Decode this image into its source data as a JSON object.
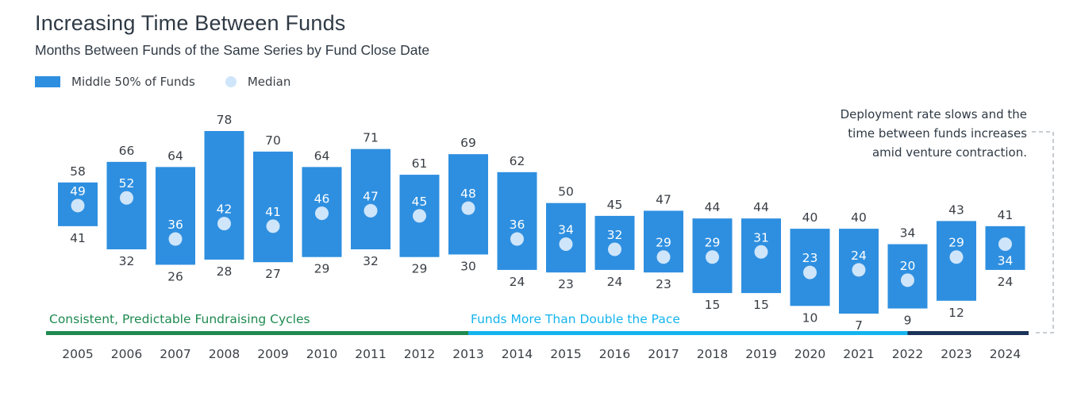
{
  "title": "Increasing Time Between Funds",
  "subtitle": "Months Between Funds of the Same Series by Fund Close Date",
  "legend": {
    "range_label": "Middle 50% of Funds",
    "median_label": "Median"
  },
  "annotation": {
    "lines": [
      "Deployment rate slows and the",
      "time between funds increases",
      "amid venture contraction."
    ]
  },
  "phases": [
    {
      "label": "Consistent, Predictable Fundraising Cycles",
      "start": "2005",
      "end": "2013",
      "color": "#1e8a50"
    },
    {
      "label": "Funds More Than Double the Pace",
      "start": "2013",
      "end": "2022",
      "color": "#14b4ee"
    },
    {
      "label": "",
      "start": "2022",
      "end": "2024",
      "color": "#1b3358"
    }
  ],
  "colors": {
    "bar": "#2e8fe0",
    "median": "#cfe5fa",
    "median_label": "#ffffff",
    "value_label": "#3a3f45"
  },
  "chart_data": {
    "type": "range-bar",
    "categories": [
      "2005",
      "2006",
      "2007",
      "2008",
      "2009",
      "2010",
      "2011",
      "2012",
      "2013",
      "2014",
      "2015",
      "2016",
      "2017",
      "2018",
      "2019",
      "2020",
      "2021",
      "2022",
      "2023",
      "2024"
    ],
    "series": [
      {
        "name": "Middle 50% of Funds",
        "upper": [
          58,
          66,
          64,
          78,
          70,
          64,
          71,
          61,
          69,
          62,
          50,
          45,
          47,
          44,
          44,
          40,
          40,
          34,
          43,
          41
        ],
        "lower": [
          41,
          32,
          26,
          28,
          27,
          29,
          32,
          29,
          30,
          24,
          23,
          24,
          23,
          15,
          15,
          10,
          7,
          9,
          12,
          24
        ]
      },
      {
        "name": "Median",
        "values": [
          49,
          52,
          36,
          42,
          41,
          46,
          47,
          45,
          48,
          36,
          34,
          32,
          29,
          29,
          31,
          23,
          24,
          20,
          29,
          34
        ]
      }
    ],
    "xlabel": "",
    "ylabel": ""
  }
}
